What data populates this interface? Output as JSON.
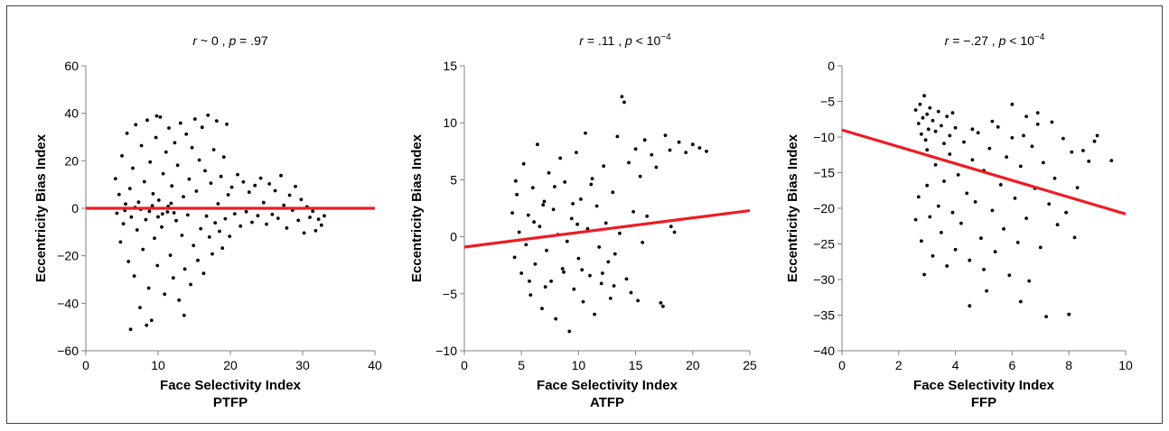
{
  "colors": {
    "points": "#000000",
    "fit_line": "#ee1c25",
    "axes": "#808080"
  },
  "chart_data": [
    {
      "type": "scatter",
      "title": {
        "r_sym": "r",
        "r_val": " ~ 0 ,  ",
        "p_sym": "p",
        "p_val": " = .97",
        "p_exp": ""
      },
      "xlabel": "Face Selectivity Index",
      "panel_label": "PTFP",
      "ylabel": "Eccentricity Bias Index",
      "xlim": [
        0,
        40
      ],
      "ylim": [
        -60,
        60
      ],
      "xticks": [
        0,
        10,
        20,
        30,
        40
      ],
      "yticks": [
        -60,
        -40,
        -20,
        0,
        20,
        40,
        60
      ],
      "xtick_labels": [
        "0",
        "10",
        "20",
        "30",
        "40"
      ],
      "ytick_labels": [
        "−60",
        "−40",
        "−20",
        "0",
        "20",
        "40",
        "60"
      ],
      "fit": {
        "x": [
          0,
          40
        ],
        "y": [
          0,
          0
        ]
      },
      "points": [
        [
          4.1,
          12.5
        ],
        [
          4.3,
          -2.1
        ],
        [
          4.6,
          5.8
        ],
        [
          4.8,
          -14.2
        ],
        [
          5.0,
          22.1
        ],
        [
          5.2,
          -6.5
        ],
        [
          5.5,
          1.8
        ],
        [
          5.7,
          31.6
        ],
        [
          5.9,
          -22.4
        ],
        [
          6.1,
          8.3
        ],
        [
          6.3,
          -3.7
        ],
        [
          6.5,
          16.9
        ],
        [
          6.7,
          -28.5
        ],
        [
          6.9,
          35.2
        ],
        [
          7.1,
          -9.1
        ],
        [
          7.3,
          2.6
        ],
        [
          7.5,
          -41.8
        ],
        [
          7.7,
          26.4
        ],
        [
          7.9,
          -17.3
        ],
        [
          8.1,
          11.2
        ],
        [
          8.3,
          -4.8
        ],
        [
          8.5,
          37.1
        ],
        [
          8.7,
          -33.6
        ],
        [
          8.9,
          19.5
        ],
        [
          9.1,
          -47.2
        ],
        [
          9.3,
          6.1
        ],
        [
          9.5,
          -12.6
        ],
        [
          9.7,
          29.8
        ],
        [
          9.9,
          -24.1
        ],
        [
          10.1,
          3.4
        ],
        [
          10.3,
          38.4
        ],
        [
          10.5,
          -7.9
        ],
        [
          10.7,
          14.6
        ],
        [
          10.9,
          -36.2
        ],
        [
          11.1,
          23.7
        ],
        [
          11.3,
          -1.5
        ],
        [
          11.5,
          33.8
        ],
        [
          11.7,
          -19.8
        ],
        [
          11.9,
          9.4
        ],
        [
          12.1,
          -29.3
        ],
        [
          12.3,
          27.6
        ],
        [
          12.5,
          -5.2
        ],
        [
          12.7,
          18.1
        ],
        [
          12.9,
          -38.7
        ],
        [
          13.1,
          35.9
        ],
        [
          13.3,
          -11.4
        ],
        [
          13.5,
          4.9
        ],
        [
          13.7,
          -25.6
        ],
        [
          13.9,
          31.2
        ],
        [
          14.1,
          -2.8
        ],
        [
          14.3,
          12.3
        ],
        [
          14.5,
          -32.1
        ],
        [
          14.7,
          25.5
        ],
        [
          14.9,
          -15.7
        ],
        [
          15.1,
          37.6
        ],
        [
          15.3,
          7.2
        ],
        [
          15.5,
          -21.9
        ],
        [
          15.7,
          20.3
        ],
        [
          15.9,
          -8.6
        ],
        [
          16.1,
          34.1
        ],
        [
          16.3,
          -27.4
        ],
        [
          16.5,
          15.8
        ],
        [
          16.7,
          -3.3
        ],
        [
          16.9,
          39.2
        ],
        [
          17.1,
          -12.1
        ],
        [
          17.3,
          10.6
        ],
        [
          17.5,
          -19.2
        ],
        [
          17.7,
          24.7
        ],
        [
          17.9,
          -6.1
        ],
        [
          18.1,
          36.8
        ],
        [
          18.3,
          1.9
        ],
        [
          18.5,
          -9.7
        ],
        [
          18.7,
          13.4
        ],
        [
          18.9,
          -16.8
        ],
        [
          19.1,
          21.6
        ],
        [
          19.3,
          -4.4
        ],
        [
          19.5,
          35.4
        ],
        [
          19.7,
          5.7
        ],
        [
          19.9,
          -11.8
        ],
        [
          20.2,
          8.9
        ],
        [
          20.6,
          -2.3
        ],
        [
          21.0,
          14.2
        ],
        [
          21.4,
          -7.5
        ],
        [
          21.8,
          11.1
        ],
        [
          22.2,
          -1.4
        ],
        [
          22.6,
          6.8
        ],
        [
          23.0,
          -5.9
        ],
        [
          23.4,
          9.6
        ],
        [
          23.8,
          -3.1
        ],
        [
          24.2,
          12.7
        ],
        [
          24.6,
          2.4
        ],
        [
          25.0,
          -6.7
        ],
        [
          25.4,
          10.3
        ],
        [
          25.8,
          -2.6
        ],
        [
          26.2,
          7.4
        ],
        [
          26.6,
          -4.2
        ],
        [
          27.0,
          13.8
        ],
        [
          27.4,
          1.3
        ],
        [
          27.8,
          -8.3
        ],
        [
          28.2,
          5.5
        ],
        [
          28.6,
          -0.8
        ],
        [
          29.0,
          9.2
        ],
        [
          29.4,
          -5.1
        ],
        [
          29.8,
          3.7
        ],
        [
          30.2,
          -10.4
        ],
        [
          30.6,
          0.6
        ],
        [
          31.0,
          -3.8
        ],
        [
          31.4,
          -1.2
        ],
        [
          31.8,
          -9.4
        ],
        [
          32.2,
          -4.6
        ],
        [
          32.6,
          -7.1
        ],
        [
          33.0,
          -3.2
        ],
        [
          6.2,
          -51.0
        ],
        [
          8.4,
          -49.3
        ],
        [
          9.8,
          38.9
        ],
        [
          13.6,
          -45.1
        ],
        [
          7.6,
          -0.4
        ],
        [
          8.8,
          -1.3
        ],
        [
          9.2,
          1.1
        ],
        [
          10.6,
          -2.4
        ],
        [
          11.4,
          0.8
        ],
        [
          12.2,
          -1.9
        ],
        [
          6.8,
          0.3
        ],
        [
          5.4,
          -0.9
        ],
        [
          10.0,
          -3.6
        ],
        [
          11.8,
          2.1
        ]
      ]
    },
    {
      "type": "scatter",
      "title": {
        "r_sym": "r",
        "r_val": " = .11 ,  ",
        "p_sym": "p",
        "p_val": " < 10",
        "p_exp": "−4"
      },
      "xlabel": "Face Selectivity Index",
      "panel_label": "ATFP",
      "ylabel": "Eccentricity Bias Index",
      "xlim": [
        0,
        25
      ],
      "ylim": [
        -10,
        15
      ],
      "xticks": [
        0,
        5,
        10,
        15,
        20,
        25
      ],
      "yticks": [
        -10,
        -5,
        0,
        5,
        10,
        15
      ],
      "xtick_labels": [
        "0",
        "5",
        "10",
        "15",
        "20",
        "25"
      ],
      "ytick_labels": [
        "−10",
        "−5",
        "0",
        "5",
        "10",
        "15"
      ],
      "fit": {
        "x": [
          0,
          25
        ],
        "y": [
          -0.9,
          2.3
        ]
      },
      "points": [
        [
          4.2,
          2.1
        ],
        [
          4.4,
          -1.8
        ],
        [
          4.6,
          3.7
        ],
        [
          4.8,
          0.4
        ],
        [
          5.0,
          -3.2
        ],
        [
          5.2,
          6.4
        ],
        [
          5.4,
          -0.7
        ],
        [
          5.6,
          1.9
        ],
        [
          5.8,
          -5.1
        ],
        [
          6.0,
          4.3
        ],
        [
          6.2,
          -2.4
        ],
        [
          6.4,
          8.1
        ],
        [
          6.6,
          0.9
        ],
        [
          6.8,
          -6.3
        ],
        [
          7.0,
          3.1
        ],
        [
          7.2,
          -1.2
        ],
        [
          7.4,
          5.6
        ],
        [
          7.6,
          -3.9
        ],
        [
          7.8,
          2.4
        ],
        [
          8.0,
          -7.2
        ],
        [
          8.2,
          0.2
        ],
        [
          8.4,
          6.9
        ],
        [
          8.6,
          -2.8
        ],
        [
          8.8,
          4.8
        ],
        [
          9.0,
          -0.4
        ],
        [
          9.2,
          -8.3
        ],
        [
          9.4,
          1.6
        ],
        [
          9.6,
          -4.6
        ],
        [
          9.8,
          7.4
        ],
        [
          10.0,
          -1.9
        ],
        [
          10.2,
          3.3
        ],
        [
          10.4,
          -5.7
        ],
        [
          10.6,
          9.1
        ],
        [
          10.8,
          0.7
        ],
        [
          11.0,
          -3.4
        ],
        [
          11.2,
          5.1
        ],
        [
          11.4,
          -6.8
        ],
        [
          11.6,
          2.7
        ],
        [
          11.8,
          -0.9
        ],
        [
          12.0,
          -4.1
        ],
        [
          12.2,
          6.2
        ],
        [
          12.4,
          1.2
        ],
        [
          12.6,
          -2.2
        ],
        [
          12.8,
          -5.4
        ],
        [
          13.0,
          3.9
        ],
        [
          13.2,
          -1.5
        ],
        [
          13.4,
          8.8
        ],
        [
          13.6,
          0.3
        ],
        [
          13.8,
          12.3
        ],
        [
          14.0,
          11.8
        ],
        [
          14.2,
          -3.7
        ],
        [
          14.4,
          6.5
        ],
        [
          14.6,
          -4.9
        ],
        [
          14.8,
          2.2
        ],
        [
          15.0,
          7.7
        ],
        [
          15.2,
          -5.6
        ],
        [
          15.4,
          5.3
        ],
        [
          15.6,
          -0.5
        ],
        [
          15.8,
          8.5
        ],
        [
          16.0,
          1.8
        ],
        [
          16.4,
          7.2
        ],
        [
          16.8,
          6.1
        ],
        [
          17.2,
          -5.8
        ],
        [
          17.6,
          8.9
        ],
        [
          18.0,
          7.6
        ],
        [
          18.4,
          0.4
        ],
        [
          18.8,
          8.3
        ],
        [
          19.4,
          7.4
        ],
        [
          20.0,
          8.1
        ],
        [
          20.6,
          7.8
        ],
        [
          21.2,
          7.5
        ],
        [
          4.5,
          4.9
        ],
        [
          5.7,
          -3.9
        ],
        [
          6.1,
          1.3
        ],
        [
          7.1,
          -4.4
        ],
        [
          7.9,
          4.4
        ],
        [
          8.7,
          -3.1
        ],
        [
          9.5,
          2.9
        ],
        [
          10.3,
          -2.9
        ],
        [
          11.1,
          4.6
        ],
        [
          12.1,
          -3.2
        ],
        [
          13.1,
          -4.3
        ],
        [
          6.9,
          2.8
        ],
        [
          9.9,
          1.1
        ],
        [
          17.4,
          -6.1
        ],
        [
          18.1,
          0.9
        ]
      ]
    },
    {
      "type": "scatter",
      "title": {
        "r_sym": "r",
        "r_val": " = −.27 ,  ",
        "p_sym": "p",
        "p_val": " < 10",
        "p_exp": "−4"
      },
      "xlabel": "Face Selectivity Index",
      "panel_label": "FFP",
      "ylabel": "Eccentricity Bias Index",
      "xlim": [
        0,
        10
      ],
      "ylim": [
        -40,
        0
      ],
      "xticks": [
        0,
        2,
        4,
        6,
        8,
        10
      ],
      "yticks": [
        -40,
        -35,
        -30,
        -25,
        -20,
        -15,
        -10,
        -5,
        0
      ],
      "xtick_labels": [
        "0",
        "2",
        "4",
        "6",
        "8",
        "10"
      ],
      "ytick_labels": [
        "−40",
        "−35",
        "−30",
        "−25",
        "−20",
        "−15",
        "−10",
        "−5",
        "0"
      ],
      "fit": {
        "x": [
          0,
          10
        ],
        "y": [
          -9.0,
          -20.8
        ]
      },
      "points": [
        [
          2.6,
          -6.2
        ],
        [
          2.7,
          -8.1
        ],
        [
          2.75,
          -5.4
        ],
        [
          2.8,
          -9.6
        ],
        [
          2.85,
          -7.3
        ],
        [
          2.9,
          -4.2
        ],
        [
          2.95,
          -10.4
        ],
        [
          3.0,
          -6.8
        ],
        [
          3.05,
          -8.9
        ],
        [
          3.1,
          -5.9
        ],
        [
          3.2,
          -7.7
        ],
        [
          3.3,
          -9.2
        ],
        [
          3.4,
          -6.4
        ],
        [
          3.5,
          -8.4
        ],
        [
          3.6,
          -10.9
        ],
        [
          3.7,
          -7.1
        ],
        [
          3.8,
          -9.8
        ],
        [
          3.9,
          -6.6
        ],
        [
          4.0,
          -8.7
        ],
        [
          2.7,
          -18.4
        ],
        [
          2.8,
          -24.6
        ],
        [
          2.9,
          -29.3
        ],
        [
          3.0,
          -16.8
        ],
        [
          3.1,
          -21.2
        ],
        [
          3.2,
          -26.7
        ],
        [
          3.3,
          -13.9
        ],
        [
          3.4,
          -19.7
        ],
        [
          3.5,
          -23.4
        ],
        [
          3.6,
          -16.2
        ],
        [
          3.7,
          -28.1
        ],
        [
          3.8,
          -12.4
        ],
        [
          3.9,
          -20.6
        ],
        [
          4.0,
          -25.8
        ],
        [
          4.1,
          -15.3
        ],
        [
          4.2,
          -22.1
        ],
        [
          4.3,
          -10.7
        ],
        [
          4.4,
          -17.9
        ],
        [
          4.5,
          -27.3
        ],
        [
          4.6,
          -13.2
        ],
        [
          4.7,
          -19.1
        ],
        [
          4.8,
          -9.4
        ],
        [
          4.9,
          -24.2
        ],
        [
          5.0,
          -14.7
        ],
        [
          5.1,
          -31.6
        ],
        [
          5.2,
          -11.6
        ],
        [
          5.3,
          -20.3
        ],
        [
          5.4,
          -26.1
        ],
        [
          5.5,
          -8.6
        ],
        [
          5.6,
          -16.7
        ],
        [
          5.7,
          -22.9
        ],
        [
          5.8,
          -12.8
        ],
        [
          5.9,
          -29.4
        ],
        [
          6.0,
          -10.1
        ],
        [
          6.1,
          -18.6
        ],
        [
          6.2,
          -24.8
        ],
        [
          6.3,
          -14.1
        ],
        [
          6.4,
          -9.8
        ],
        [
          6.5,
          -21.4
        ],
        [
          6.6,
          -30.2
        ],
        [
          6.7,
          -11.3
        ],
        [
          6.8,
          -17.2
        ],
        [
          6.9,
          -8.2
        ],
        [
          7.0,
          -25.5
        ],
        [
          7.1,
          -13.6
        ],
        [
          7.2,
          -35.2
        ],
        [
          7.3,
          -19.4
        ],
        [
          7.4,
          -7.9
        ],
        [
          7.5,
          -15.8
        ],
        [
          7.6,
          -22.3
        ],
        [
          7.8,
          -10.2
        ],
        [
          8.0,
          -34.9
        ],
        [
          8.1,
          -12.1
        ],
        [
          8.2,
          -24.1
        ],
        [
          8.3,
          -17.1
        ],
        [
          8.5,
          -11.9
        ],
        [
          8.7,
          -13.4
        ],
        [
          8.9,
          -10.6
        ],
        [
          9.0,
          -9.8
        ],
        [
          9.5,
          -13.3
        ],
        [
          6.0,
          -5.4
        ],
        [
          6.5,
          -7.1
        ],
        [
          6.9,
          -6.6
        ],
        [
          5.3,
          -7.8
        ],
        [
          4.6,
          -8.9
        ],
        [
          3.0,
          -11.8
        ],
        [
          2.6,
          -21.6
        ],
        [
          4.5,
          -33.7
        ],
        [
          5.0,
          -28.6
        ],
        [
          6.3,
          -33.1
        ],
        [
          7.9,
          -20.6
        ]
      ]
    }
  ]
}
